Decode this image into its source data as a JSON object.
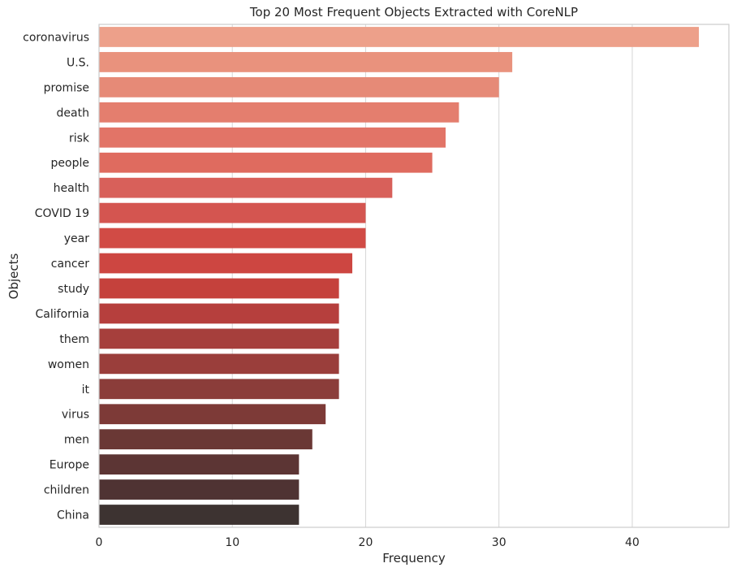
{
  "chart_data": {
    "type": "bar",
    "orientation": "horizontal",
    "title": "Top 20 Most Frequent Objects Extracted with CoreNLP",
    "xlabel": "Frequency",
    "ylabel": "Objects",
    "xlim": [
      0,
      47.25
    ],
    "xticks": [
      0,
      10,
      20,
      30,
      40
    ],
    "grid": "vertical",
    "categories": [
      "coronavirus",
      "U.S.",
      "promise",
      "death",
      "risk",
      "people",
      "health",
      "COVID 19",
      "year",
      "cancer",
      "study",
      "California",
      "them",
      "women",
      "it",
      "virus",
      "men",
      "Europe",
      "children",
      "China"
    ],
    "values": [
      45,
      31,
      30,
      27,
      26,
      25,
      22,
      20,
      20,
      19,
      18,
      18,
      18,
      18,
      18,
      17,
      16,
      15,
      15,
      15
    ],
    "colors": [
      "#eda08a",
      "#e9927d",
      "#e68a77",
      "#e47e6e",
      "#e27467",
      "#df6b5f",
      "#d8605a",
      "#d45550",
      "#d14b45",
      "#cd4641",
      "#c5413c",
      "#b63f3d",
      "#a63f3c",
      "#9a3e3b",
      "#8b3d3a",
      "#7d3a37",
      "#6a3835",
      "#5c3534",
      "#4f3333",
      "#3d3331"
    ]
  }
}
